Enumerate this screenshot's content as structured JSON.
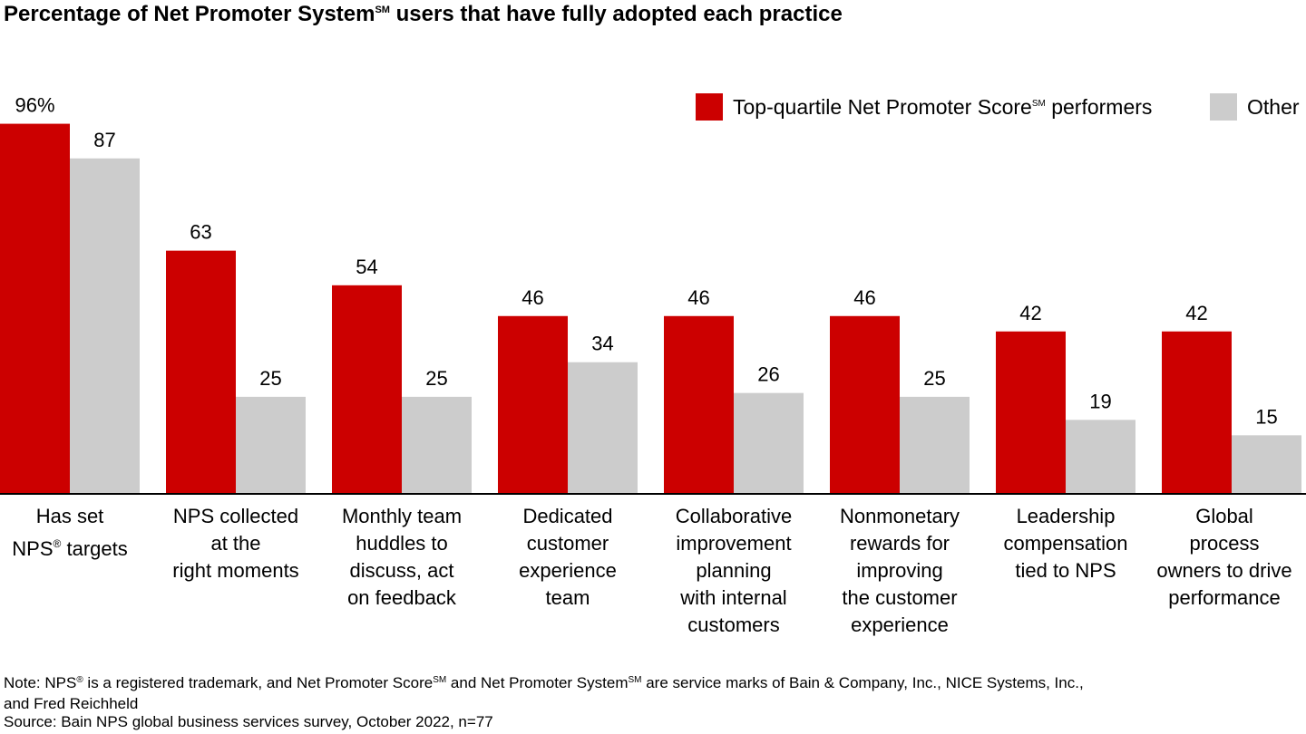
{
  "title": {
    "before": "Percentage of Net Promoter System",
    "mark": "SM",
    "after": " users that have fully adopted each practice"
  },
  "legend": [
    {
      "before": "Top-quartile Net Promoter Score",
      "mark": "SM",
      "after": " performers",
      "color": "#CC0000"
    },
    {
      "before": "Other",
      "mark": "",
      "after": "",
      "color": "#CCCCCC"
    }
  ],
  "chart_data": {
    "type": "bar",
    "categories": [
      {
        "line1_before": "Has set",
        "line2_before": "NPS",
        "line2_mark": "®",
        "line2_after": " targets"
      },
      {
        "text": "NPS collected\nat the\nright moments"
      },
      {
        "text": "Monthly team\nhuddles to\ndiscuss, act\non feedback"
      },
      {
        "text": "Dedicated\ncustomer\nexperience\nteam"
      },
      {
        "text": "Collaborative\nimprovement\nplanning\nwith internal\ncustomers"
      },
      {
        "text": "Nonmonetary\nrewards for\nimproving\nthe customer\nexperience"
      },
      {
        "text": "Leadership\ncompensation\ntied to NPS"
      },
      {
        "text": "Global\nprocess\nowners to drive\nperformance"
      }
    ],
    "series": [
      {
        "name": "Top-quartile Net Promoter Score performers",
        "color": "#CC0000",
        "values": [
          96,
          63,
          54,
          46,
          46,
          46,
          42,
          42
        ],
        "labels": [
          "96%",
          "63",
          "54",
          "46",
          "46",
          "46",
          "42",
          "42"
        ]
      },
      {
        "name": "Other",
        "color": "#CCCCCC",
        "values": [
          87,
          25,
          25,
          34,
          26,
          25,
          19,
          15
        ],
        "labels": [
          "87",
          "25",
          "25",
          "34",
          "26",
          "25",
          "19",
          "15"
        ]
      }
    ],
    "ylim": [
      0,
      100
    ],
    "grid": false,
    "legend_position": "top-right"
  },
  "note": {
    "line1_a": "Note: NPS",
    "line1_mark1": "®",
    "line1_b": " is a registered trademark, and Net Promoter Score",
    "line1_mark2": "SM",
    "line1_c": " and Net Promoter System",
    "line1_mark3": "SM",
    "line1_d": " are service marks of Bain & Company, Inc., NICE Systems, Inc.,",
    "line2": "and Fred Reichheld"
  },
  "source": "Source: Bain NPS global business services survey, October 2022, n=77"
}
